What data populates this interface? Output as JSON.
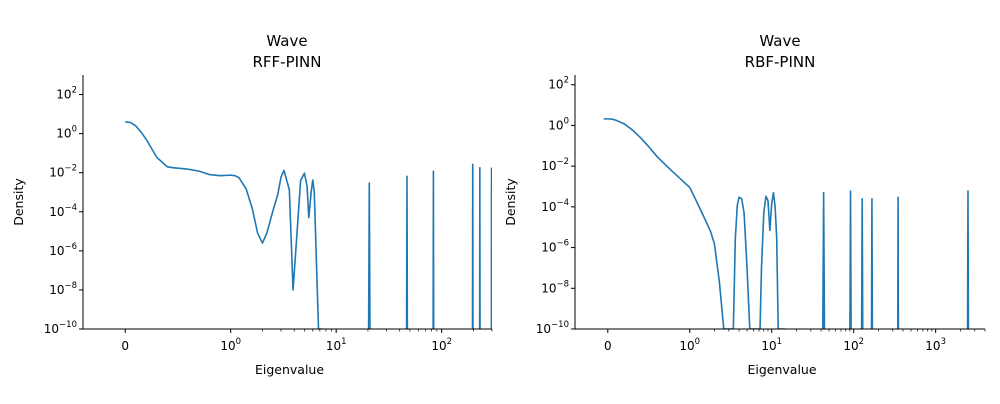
{
  "chart_data": [
    {
      "type": "line",
      "title": "Wave",
      "subtitle": "RFF-PINN",
      "xlabel": "Eigenvalue",
      "ylabel": "Density",
      "xscale": "symlog",
      "yscale": "log",
      "xlim": [
        -0.4,
        300
      ],
      "ylim": [
        1e-10,
        1000
      ],
      "grid": false,
      "color": "#1f77b4",
      "x_ticks": [
        {
          "base": "0",
          "exp": ""
        },
        {
          "base": "10",
          "exp": "0"
        },
        {
          "base": "10",
          "exp": "1"
        },
        {
          "base": "10",
          "exp": "2"
        }
      ],
      "y_ticks": [
        {
          "base": "10",
          "exp": "−10"
        },
        {
          "base": "10",
          "exp": "−8"
        },
        {
          "base": "10",
          "exp": "−6"
        },
        {
          "base": "10",
          "exp": "−4"
        },
        {
          "base": "10",
          "exp": "−2"
        },
        {
          "base": "10",
          "exp": "0"
        },
        {
          "base": "10",
          "exp": "2"
        }
      ],
      "series": [
        {
          "x": [
            0,
            0.05,
            0.1,
            0.15,
            0.2,
            0.3,
            0.4,
            0.45,
            0.5,
            0.55,
            0.6,
            0.7,
            0.8,
            0.9,
            1.0,
            1.1,
            1.2,
            1.4,
            1.6,
            1.8,
            2.0,
            2.2,
            2.5,
            2.8,
            3.0,
            3.2,
            3.6,
            3.9,
            4.2,
            4.6,
            5.0,
            5.3,
            5.5,
            5.8,
            6.0,
            6.2,
            6.45,
            6.8,
            7.0,
            7.4
          ],
          "y": [
            4,
            3.7,
            2.5,
            1.2,
            0.5,
            0.06,
            0.02,
            0.018,
            0.017,
            0.016,
            0.015,
            0.012,
            0.008,
            0.007,
            0.0075,
            0.007,
            0.0055,
            0.0015,
            0.00015,
            8e-06,
            2.5e-06,
            8e-06,
            0.0001,
            0.0008,
            0.006,
            0.013,
            0.0013,
            1e-08,
            3e-06,
            0.004,
            0.0095,
            0.002,
            5e-05,
            0.0011,
            0.0042,
            0.001,
            1e-06,
            1e-10,
            1e-10,
            1e-10
          ]
        },
        {
          "x": [
            20.3,
            20.6,
            20.9
          ],
          "y": [
            1e-10,
            0.003,
            1e-10
          ]
        },
        {
          "x": [
            46.5,
            46.9,
            47.3
          ],
          "y": [
            1e-10,
            0.0065,
            1e-10
          ]
        },
        {
          "x": [
            83,
            83.5,
            84
          ],
          "y": [
            1e-10,
            0.012,
            1e-10
          ]
        },
        {
          "x": [
            196,
            197,
            198
          ],
          "y": [
            1e-10,
            0.027,
            1e-10
          ]
        },
        {
          "x": [
            229,
            230,
            231
          ],
          "y": [
            1e-10,
            0.018,
            1e-10
          ]
        },
        {
          "x": [
            296,
            297,
            298
          ],
          "y": [
            1e-10,
            0.017,
            1e-10
          ]
        }
      ]
    },
    {
      "type": "line",
      "title": "Wave",
      "subtitle": "RBF-PINN",
      "xlabel": "Eigenvalue",
      "ylabel": "Density",
      "xscale": "symlog",
      "yscale": "log",
      "xlim": [
        -0.4,
        4000
      ],
      "ylim": [
        1e-10,
        300
      ],
      "grid": false,
      "color": "#1f77b4",
      "x_ticks": [
        {
          "base": "0",
          "exp": ""
        },
        {
          "base": "10",
          "exp": "0"
        },
        {
          "base": "10",
          "exp": "1"
        },
        {
          "base": "10",
          "exp": "2"
        },
        {
          "base": "10",
          "exp": "3"
        }
      ],
      "y_ticks": [
        {
          "base": "10",
          "exp": "−10"
        },
        {
          "base": "10",
          "exp": "−8"
        },
        {
          "base": "10",
          "exp": "−6"
        },
        {
          "base": "10",
          "exp": "−4"
        },
        {
          "base": "10",
          "exp": "−2"
        },
        {
          "base": "10",
          "exp": "0"
        },
        {
          "base": "10",
          "exp": "2"
        }
      ],
      "series": [
        {
          "x": [
            -0.05,
            0,
            0.05,
            0.1,
            0.2,
            0.3,
            0.4,
            0.5,
            0.6,
            0.7,
            0.8,
            1.0,
            1.2,
            1.5,
            1.8,
            2.0,
            2.3,
            2.6,
            2.8,
            3.0,
            3.2,
            3.4,
            3.6,
            3.8,
            4.0,
            4.3,
            4.6,
            5.0,
            5.4,
            5.8,
            6.2,
            6.6,
            7.0,
            7.2,
            7.5,
            8.0,
            8.5,
            9.0,
            9.5,
            10.0,
            10.5,
            11.0,
            11.5,
            12.0,
            12.5,
            13.0,
            13.5,
            14.0,
            14.5
          ],
          "y": [
            2.1,
            2.1,
            2.05,
            1.8,
            1.2,
            0.6,
            0.25,
            0.09,
            0.03,
            0.012,
            0.005,
            0.0009,
            0.0002,
            3e-05,
            6e-06,
            1.5e-06,
            2e-08,
            1e-10,
            1e-10,
            1e-10,
            1e-10,
            1e-10,
            3e-06,
            0.00012,
            0.0003,
            0.00025,
            5e-05,
            1e-07,
            1e-10,
            1e-10,
            1e-10,
            1e-10,
            1e-10,
            1e-10,
            1e-07,
            5e-05,
            0.00033,
            0.0002,
            7e-06,
            0.00015,
            0.0005,
            0.0001,
            3e-06,
            1e-10,
            1e-10,
            1e-10,
            1e-10,
            1e-10,
            1e-10
          ]
        },
        {
          "x": [
            42,
            43,
            44
          ],
          "y": [
            1e-10,
            0.0005,
            1e-10
          ]
        },
        {
          "x": [
            90,
            91.5,
            93
          ],
          "y": [
            1e-10,
            0.0006,
            1e-10
          ]
        },
        {
          "x": [
            125,
            127,
            129
          ],
          "y": [
            1e-10,
            0.00025,
            1e-10
          ]
        },
        {
          "x": [
            165,
            167,
            169
          ],
          "y": [
            1e-10,
            0.00025,
            1e-10
          ]
        },
        {
          "x": [
            345,
            348,
            351
          ],
          "y": [
            1e-10,
            0.0003,
            1e-10
          ]
        },
        {
          "x": [
            2450,
            2480,
            2510
          ],
          "y": [
            1e-10,
            0.0006,
            1e-10
          ]
        }
      ]
    }
  ]
}
